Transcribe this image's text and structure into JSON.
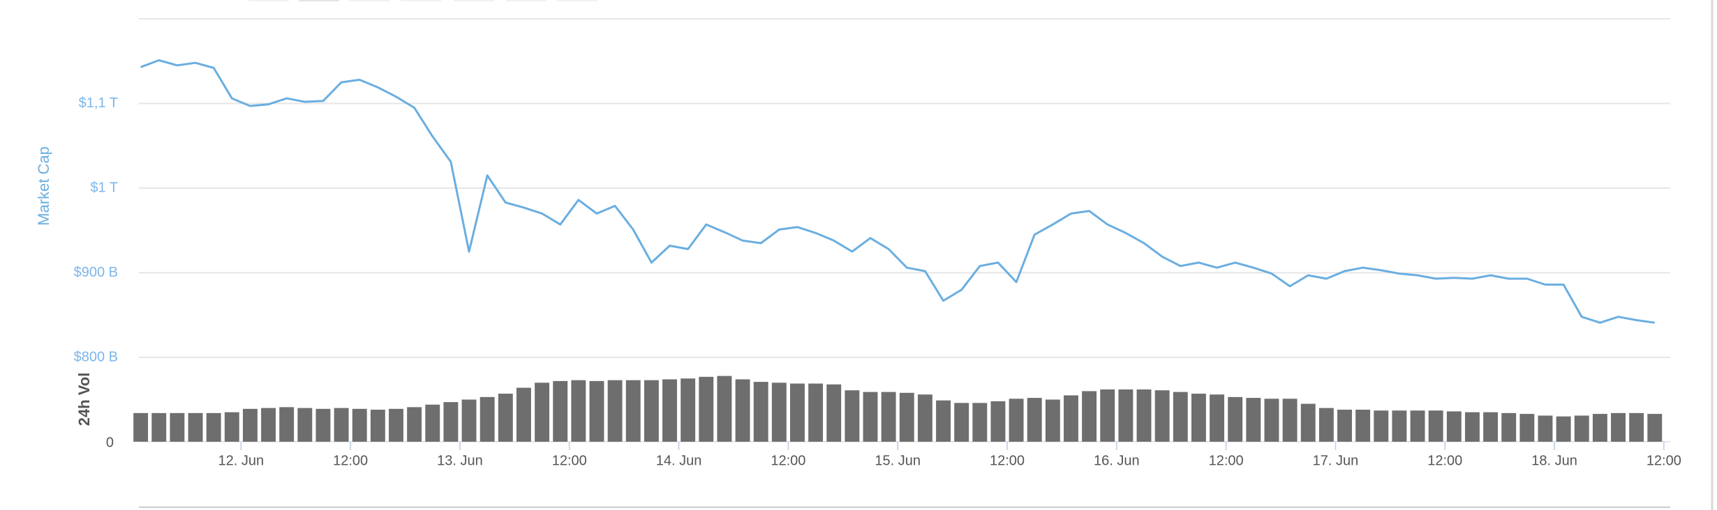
{
  "chart_data": {
    "type": "line",
    "y_label": "Market Cap",
    "y2_label": "24h Vol",
    "x": [
      -11,
      -9,
      -7,
      -5,
      -3,
      -1,
      1,
      3,
      5,
      7,
      9,
      11,
      13,
      15,
      17,
      19,
      21,
      23,
      25,
      27,
      29,
      31,
      33,
      35,
      37,
      39,
      41,
      43,
      45,
      47,
      49,
      51,
      53,
      55,
      57,
      59,
      61,
      63,
      65,
      67,
      69,
      71,
      73,
      75,
      77,
      79,
      81,
      83,
      85,
      87,
      89,
      91,
      93,
      95,
      97,
      99,
      101,
      103,
      105,
      107,
      109,
      111,
      113,
      115,
      117,
      119,
      121,
      123,
      125,
      127,
      129,
      131,
      133,
      135,
      137,
      139,
      141,
      143,
      145,
      147,
      149,
      151,
      153,
      155
    ],
    "xlim": [
      -11.2,
      156.7
    ],
    "xticks": [
      {
        "value": 0,
        "label": "12. Jun"
      },
      {
        "value": 12,
        "label": "12:00"
      },
      {
        "value": 24,
        "label": "13. Jun"
      },
      {
        "value": 36,
        "label": "12:00"
      },
      {
        "value": 48,
        "label": "14. Jun"
      },
      {
        "value": 60,
        "label": "12:00"
      },
      {
        "value": 72,
        "label": "15. Jun"
      },
      {
        "value": 84,
        "label": "12:00"
      },
      {
        "value": 96,
        "label": "16. Jun"
      },
      {
        "value": 108,
        "label": "12:00"
      },
      {
        "value": 120,
        "label": "17. Jun"
      },
      {
        "value": 132,
        "label": "12:00"
      },
      {
        "value": 144,
        "label": "18. Jun"
      },
      {
        "value": 156,
        "label": "12:00"
      }
    ],
    "ylim": [
      800,
      1200
    ],
    "yticks": [
      {
        "value": 800,
        "label": "$800 B"
      },
      {
        "value": 900,
        "label": "$900 B"
      },
      {
        "value": 1000,
        "label": "$1 T"
      },
      {
        "value": 1100,
        "label": "$1,1 T"
      }
    ],
    "y2lim": [
      0,
      100
    ],
    "y2ticks": [
      0
    ],
    "grid": true,
    "series": [
      {
        "name": "Market Cap",
        "type": "line",
        "color": "#6aaee0",
        "values": [
          1143,
          1151,
          1145,
          1148,
          1142,
          1106,
          1097,
          1099,
          1106,
          1102,
          1103,
          1125,
          1128,
          1119,
          1108,
          1095,
          1061,
          1031,
          925,
          1015,
          983,
          977,
          970,
          957,
          986,
          970,
          979,
          951,
          912,
          932,
          928,
          957,
          948,
          938,
          935,
          951,
          954,
          947,
          938,
          925,
          941,
          928,
          906,
          902,
          867,
          880,
          908,
          912,
          889,
          945,
          957,
          970,
          973,
          957,
          947,
          935,
          919,
          908,
          912,
          906,
          912,
          906,
          899,
          884,
          897,
          893,
          902,
          906,
          903,
          899,
          897,
          893,
          894,
          893,
          897,
          893,
          893,
          886,
          886,
          848,
          841,
          848,
          844,
          841
        ]
      },
      {
        "name": "24h Vol",
        "type": "bar",
        "axis": "y2",
        "color": "#6e6e6e",
        "values": [
          34,
          34,
          34,
          34,
          34,
          35,
          39,
          40,
          41,
          40,
          39,
          40,
          39,
          38,
          39,
          41,
          44,
          47,
          50,
          53,
          57,
          64,
          70,
          72,
          73,
          72,
          73,
          73,
          73,
          74,
          75,
          77,
          78,
          74,
          71,
          70,
          69,
          69,
          68,
          61,
          59,
          59,
          58,
          56,
          49,
          46,
          46,
          48,
          51,
          52,
          50,
          55,
          60,
          62,
          62,
          62,
          61,
          59,
          57,
          56,
          53,
          52,
          51,
          51,
          45,
          40,
          38,
          38,
          37,
          37,
          37,
          37,
          36,
          35,
          35,
          34,
          33,
          31,
          30,
          31,
          33,
          34,
          34,
          33
        ]
      }
    ]
  }
}
